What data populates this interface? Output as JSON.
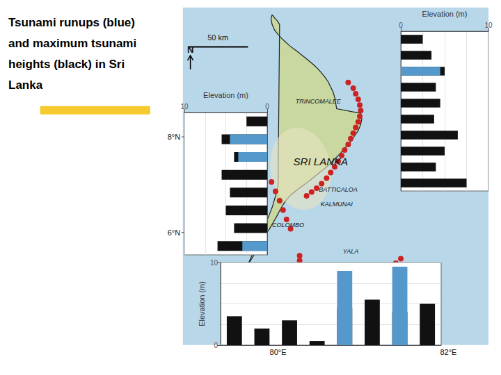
{
  "chart_data": [
    {
      "type": "bar",
      "orientation": "horizontal",
      "title": "Tsunami runups (blue)\nand maximum tsunami\nheights (black) in Sri\nLanka",
      "annotations": [
        "50 km",
        "N",
        "8°N",
        "6°N",
        "80°E",
        "82°E",
        "TRINCOMALEE",
        "SRI LANKA",
        "BATTICALOA",
        "KALMUNAI",
        "COLOMBO",
        "YALA"
      ],
      "xlabel": "Elevation (m)",
      "categories": [
        null,
        null,
        null,
        null,
        null,
        null,
        null,
        null,
        null,
        null
      ],
      "series": [
        {
          "color": "#111111",
          "values": [
            2.5,
            3.5,
            5.0,
            4.0,
            4.5,
            3.8,
            6.5,
            5.0,
            4.0,
            7.5
          ]
        },
        {
          "color": "#5599cc",
          "values": [
            0.0,
            0.0,
            4.5,
            0.0,
            0.0,
            0.0,
            0.0,
            0.0,
            0.0,
            0.0
          ]
        }
      ],
      "xlim": [
        0,
        10
      ],
      "xticks": [
        0,
        10
      ],
      "grid": true,
      "tick_labels": "x"
    },
    {
      "type": "bar",
      "ylabel": "Elevation (m)",
      "categories": [
        null,
        null,
        null,
        null,
        null,
        null,
        null,
        null
      ],
      "series": [
        {
          "color": "#111111",
          "values": [
            3.5,
            2.0,
            3.0,
            0.5,
            4.5,
            5.5,
            4.0,
            5.0
          ]
        },
        {
          "color": "#5599cc",
          "values": [
            0.0,
            0.0,
            0.0,
            0.0,
            9.0,
            0.0,
            9.5,
            0.0
          ]
        }
      ],
      "ylim": [
        0,
        10
      ],
      "yticks": [
        0,
        10
      ],
      "grid": true,
      "tick_labels": "y"
    },
    {
      "type": "bar",
      "orientation": "horizontal",
      "xlabel": "Elevation (m)",
      "categories": [
        null,
        null,
        null,
        null,
        null,
        null,
        null,
        null
      ],
      "series": [
        {
          "color": "#111111",
          "values": [
            2.5,
            5.5,
            4.0,
            5.5,
            4.5,
            5.0,
            4.0,
            6.0
          ]
        },
        {
          "color": "#5599cc",
          "values": [
            0.0,
            4.5,
            3.5,
            0.0,
            0.0,
            0.0,
            0.0,
            3.0
          ]
        }
      ],
      "xlim": [
        10,
        0
      ],
      "xticks": [
        10,
        0
      ],
      "grid": true,
      "tick_labels": "x"
    }
  ]
}
